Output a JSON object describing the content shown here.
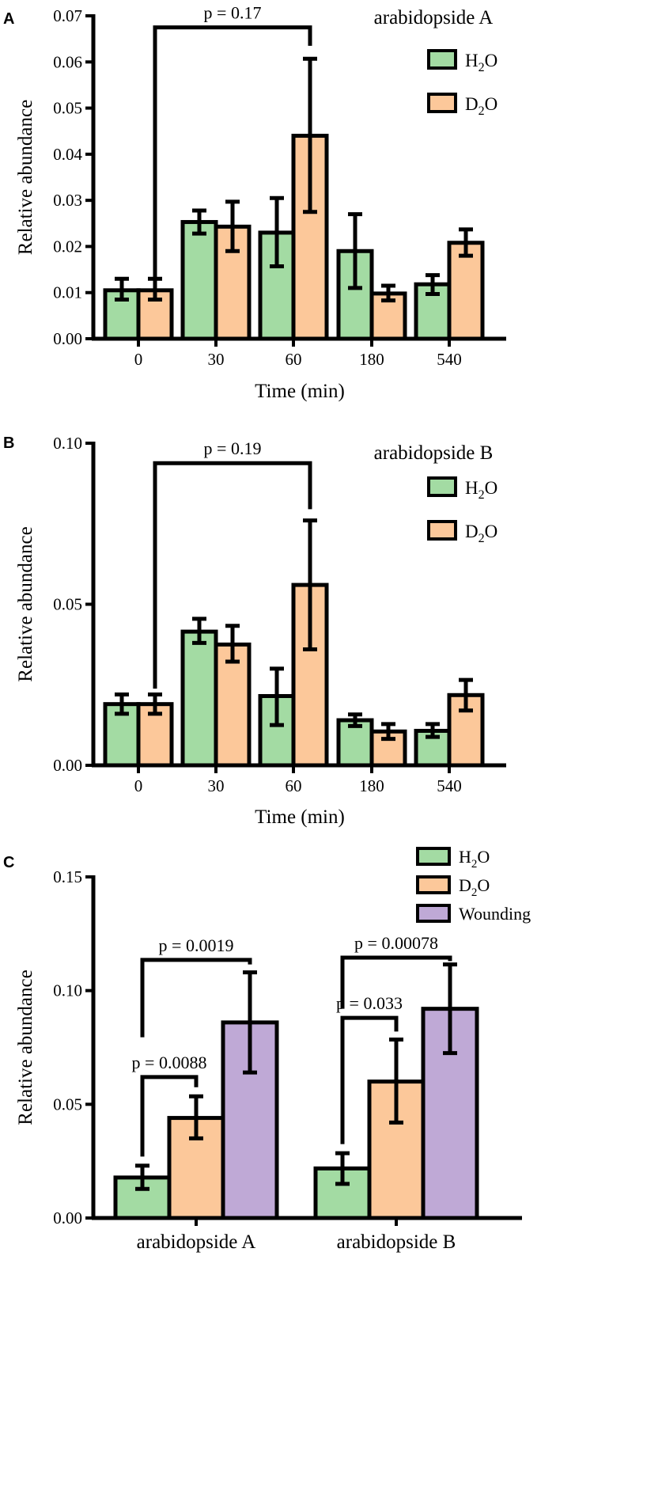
{
  "colors": {
    "h2o": "#a3dba3",
    "d2o": "#fcc89a",
    "wounding": "#bfa9d6",
    "stroke": "#000000"
  },
  "chart_data": [
    {
      "type": "bar",
      "panel": "A",
      "title": "arabidopside A",
      "xlabel": "Time (min)",
      "ylabel": "Relative abundance",
      "categories": [
        "0",
        "30",
        "60",
        "180",
        "540"
      ],
      "ylim": [
        0,
        0.07
      ],
      "yticks": [
        "0.00",
        "0.01",
        "0.02",
        "0.03",
        "0.04",
        "0.05",
        "0.06",
        "0.07"
      ],
      "ytick_values": [
        0,
        0.01,
        0.02,
        0.03,
        0.04,
        0.05,
        0.06,
        0.07
      ],
      "legend_position": "top-right",
      "series": [
        {
          "name": "H2O",
          "legend_main": "H",
          "legend_sub": "2",
          "legend_tail": "O",
          "color_key": "h2o",
          "values": [
            0.0105,
            0.0253,
            0.023,
            0.019,
            0.0118
          ],
          "err_low": [
            0.0085,
            0.0228,
            0.0157,
            0.011,
            0.0097
          ],
          "err_high": [
            0.013,
            0.0278,
            0.0305,
            0.027,
            0.0138
          ]
        },
        {
          "name": "D2O",
          "legend_main": "D",
          "legend_sub": "2",
          "legend_tail": "O",
          "color_key": "d2o",
          "values": [
            0.0105,
            0.0243,
            0.044,
            0.0098,
            0.0208
          ],
          "err_low": [
            0.0085,
            0.019,
            0.0275,
            0.0083,
            0.018
          ],
          "err_high": [
            0.013,
            0.0297,
            0.0607,
            0.0115,
            0.0237
          ]
        }
      ],
      "annotations": [
        {
          "text": "p = 0.17",
          "from_series": 1,
          "from_cat": 0,
          "to_series": 1,
          "to_cat": 2,
          "top": 0.0675,
          "from_bottom": 0.0115,
          "to_bottom": 0.0635
        }
      ]
    },
    {
      "type": "bar",
      "panel": "B",
      "title": "arabidopside B",
      "xlabel": "Time (min)",
      "ylabel": "Relative abundance",
      "categories": [
        "0",
        "30",
        "60",
        "180",
        "540"
      ],
      "ylim": [
        0,
        0.1
      ],
      "yticks": [
        "0.00",
        "0.05",
        "0.10"
      ],
      "ytick_values": [
        0,
        0.05,
        0.1
      ],
      "legend_position": "top-right",
      "series": [
        {
          "name": "H2O",
          "legend_main": "H",
          "legend_sub": "2",
          "legend_tail": "O",
          "color_key": "h2o",
          "values": [
            0.019,
            0.0415,
            0.0215,
            0.014,
            0.0107
          ],
          "err_low": [
            0.016,
            0.038,
            0.0125,
            0.0122,
            0.0088
          ],
          "err_high": [
            0.022,
            0.0455,
            0.03,
            0.0158,
            0.0128
          ]
        },
        {
          "name": "D2O",
          "legend_main": "D",
          "legend_sub": "2",
          "legend_tail": "O",
          "color_key": "d2o",
          "values": [
            0.019,
            0.0375,
            0.056,
            0.0105,
            0.0218
          ],
          "err_low": [
            0.016,
            0.0322,
            0.036,
            0.0082,
            0.017
          ],
          "err_high": [
            0.022,
            0.0433,
            0.076,
            0.0128,
            0.0265
          ]
        }
      ],
      "annotations": [
        {
          "text": "p = 0.19",
          "from_series": 1,
          "from_cat": 0,
          "to_series": 1,
          "to_cat": 2,
          "top": 0.0938,
          "from_bottom": 0.0238,
          "to_bottom": 0.0795
        }
      ]
    },
    {
      "type": "bar",
      "panel": "C",
      "title": "",
      "xlabel": "",
      "ylabel": "Relative abundance",
      "categories": [
        "arabidopside A",
        "arabidopside B"
      ],
      "ylim": [
        0,
        0.15
      ],
      "yticks": [
        "0.00",
        "0.05",
        "0.10",
        "0.15"
      ],
      "ytick_values": [
        0,
        0.05,
        0.1,
        0.15
      ],
      "legend_position": "top-right",
      "series": [
        {
          "name": "H2O",
          "legend_main": "H",
          "legend_sub": "2",
          "legend_tail": "O",
          "color_key": "h2o",
          "values": [
            0.0178,
            0.0218
          ],
          "err_low": [
            0.0128,
            0.015
          ],
          "err_high": [
            0.023,
            0.0285
          ]
        },
        {
          "name": "D2O",
          "legend_main": "D",
          "legend_sub": "2",
          "legend_tail": "O",
          "color_key": "d2o",
          "values": [
            0.044,
            0.06
          ],
          "err_low": [
            0.035,
            0.042
          ],
          "err_high": [
            0.0535,
            0.0785
          ]
        },
        {
          "name": "Wounding",
          "legend_main": "Wounding",
          "legend_sub": "",
          "legend_tail": "",
          "color_key": "wounding",
          "values": [
            0.086,
            0.092
          ],
          "err_low": [
            0.064,
            0.0725
          ],
          "err_high": [
            0.108,
            0.1115
          ]
        }
      ],
      "annotations": [
        {
          "text": "p = 0.0088",
          "from_series": 0,
          "from_cat": 0,
          "to_series": 1,
          "to_cat": 0,
          "top": 0.062,
          "from_bottom": 0.027,
          "to_bottom": 0.0575
        },
        {
          "text": "p = 0.0019",
          "from_series": 0,
          "from_cat": 0,
          "to_series": 2,
          "to_cat": 0,
          "top": 0.1135,
          "from_bottom": 0.0795,
          "to_bottom": 0.1115
        },
        {
          "text": "p = 0.033",
          "from_series": 0,
          "from_cat": 1,
          "to_series": 1,
          "to_cat": 1,
          "top": 0.088,
          "from_bottom": 0.0325,
          "to_bottom": 0.082
        },
        {
          "text": "p = 0.00078",
          "from_series": 0,
          "from_cat": 1,
          "to_series": 2,
          "to_cat": 1,
          "top": 0.1145,
          "from_bottom": 0.092,
          "to_bottom": 0.113
        }
      ]
    }
  ]
}
